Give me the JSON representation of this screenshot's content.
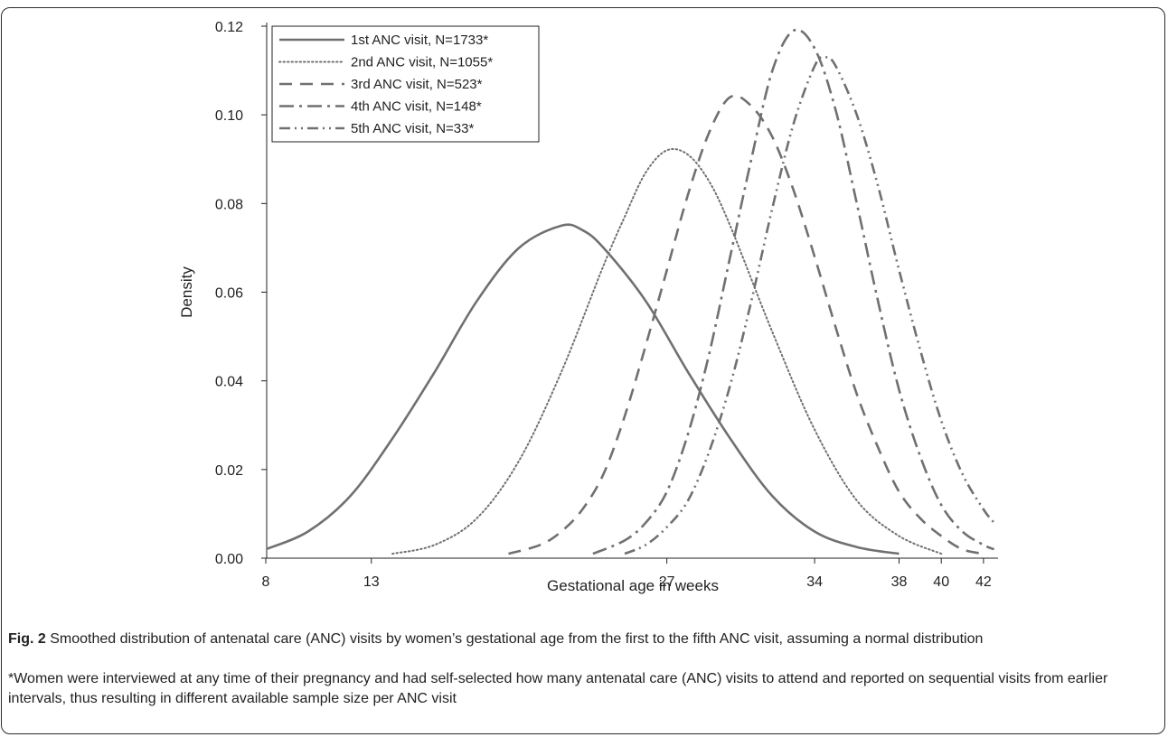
{
  "chart_data": {
    "type": "line",
    "xlabel": "Gestational age in weeks",
    "ylabel": "Density",
    "xlim": [
      8,
      42.5
    ],
    "ylim": [
      0,
      0.12
    ],
    "x_ticks": [
      8,
      13,
      27,
      34,
      38,
      40,
      42
    ],
    "y_ticks": [
      "0.00",
      "0.02",
      "0.04",
      "0.06",
      "0.08",
      "0.10",
      "0.12"
    ],
    "grid": false,
    "legend_position": "top-left",
    "series": [
      {
        "name": "1st ANC visit, N=1733*",
        "style": "solid",
        "x": [
          8,
          10,
          12,
          14,
          16,
          18,
          20,
          22,
          23,
          24,
          26,
          28,
          30,
          32,
          34,
          36,
          38
        ],
        "values": [
          0.002,
          0.006,
          0.014,
          0.027,
          0.042,
          0.058,
          0.07,
          0.075,
          0.074,
          0.07,
          0.058,
          0.042,
          0.027,
          0.014,
          0.006,
          0.0025,
          0.001
        ]
      },
      {
        "name": "2nd ANC visit, N=1055*",
        "style": "dotted",
        "x": [
          14,
          16,
          18,
          20,
          22,
          24,
          25,
          26,
          27,
          28,
          29,
          30,
          32,
          34,
          36,
          38,
          40
        ],
        "values": [
          0.001,
          0.003,
          0.009,
          0.022,
          0.042,
          0.066,
          0.077,
          0.087,
          0.092,
          0.091,
          0.085,
          0.075,
          0.051,
          0.029,
          0.013,
          0.005,
          0.001
        ]
      },
      {
        "name": "3rd ANC visit, N=523*",
        "style": "dashed",
        "x": [
          19.5,
          21,
          22,
          23,
          24,
          25,
          26,
          27,
          28,
          29,
          30,
          31,
          32,
          33,
          34,
          35,
          36,
          37,
          38,
          39,
          40,
          41,
          42
        ],
        "values": [
          0.001,
          0.003,
          0.006,
          0.011,
          0.019,
          0.032,
          0.048,
          0.065,
          0.082,
          0.096,
          0.104,
          0.102,
          0.095,
          0.083,
          0.068,
          0.052,
          0.037,
          0.025,
          0.015,
          0.009,
          0.005,
          0.002,
          0.001
        ]
      },
      {
        "name": "4th ANC visit, N=148*",
        "style": "longdash-dot",
        "x": [
          23.5,
          25,
          26,
          27,
          28,
          29,
          30,
          31,
          32,
          33,
          34,
          35,
          36,
          37,
          38,
          39,
          40,
          41,
          42,
          42.5
        ],
        "values": [
          0.001,
          0.004,
          0.008,
          0.015,
          0.028,
          0.046,
          0.068,
          0.09,
          0.11,
          0.119,
          0.115,
          0.101,
          0.08,
          0.058,
          0.038,
          0.023,
          0.012,
          0.006,
          0.003,
          0.002
        ]
      },
      {
        "name": "5th ANC visit, N=33*",
        "style": "dash-dot-dot",
        "x": [
          25,
          26,
          27,
          28,
          29,
          30,
          31,
          32,
          33,
          34,
          34.5,
          35,
          36,
          37,
          38,
          39,
          40,
          41,
          42,
          42.5
        ],
        "values": [
          0.001,
          0.003,
          0.007,
          0.013,
          0.024,
          0.039,
          0.058,
          0.079,
          0.098,
          0.111,
          0.113,
          0.111,
          0.1,
          0.084,
          0.065,
          0.047,
          0.031,
          0.019,
          0.011,
          0.008
        ]
      }
    ]
  },
  "caption": {
    "label": "Fig. 2",
    "text": " Smoothed distribution of antenatal care (ANC) visits by women’s gestational age from the first to the fifth ANC visit, assuming a normal distribution",
    "footnote": "*Women were interviewed at any time of their pregnancy and had self-selected how many antenatal care (ANC) visits to attend and reported on sequential visits from earlier intervals, thus resulting in different available sample size per ANC visit"
  },
  "colors": {
    "lines": "#707070",
    "axis": "#222222",
    "border": "#2b2b2b"
  }
}
